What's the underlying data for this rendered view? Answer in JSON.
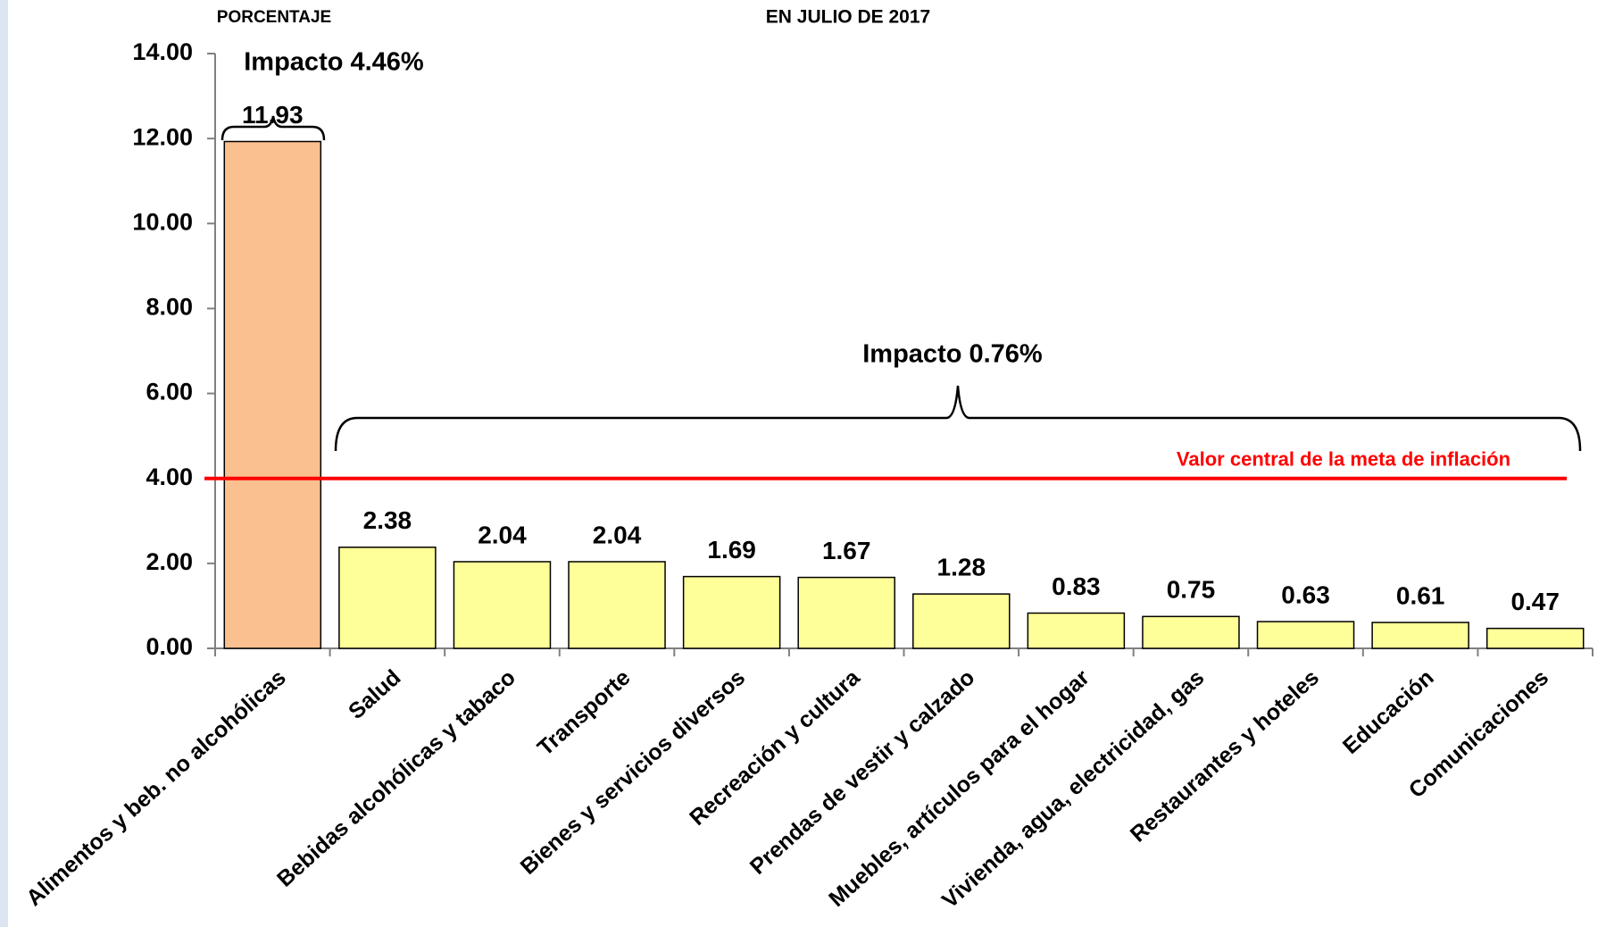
{
  "chart_data": {
    "type": "bar",
    "title": "EN JULIO DE 2017",
    "y_axis_label": "PORCENTAJE",
    "categories": [
      "Alimentos y beb. no alcohólicas",
      "Salud",
      "Bebidas alcohólicas y tabaco",
      "Transporte",
      "Bienes y servicios diversos",
      "Recreación y cultura",
      "Prendas de vestir y calzado",
      "Muebles, artículos para el hogar",
      "Vivienda, agua, electricidad, gas",
      "Restaurantes y hoteles",
      "Educación",
      "Comunicaciones"
    ],
    "values": [
      11.93,
      2.38,
      2.04,
      2.04,
      1.69,
      1.67,
      1.28,
      0.83,
      0.75,
      0.63,
      0.61,
      0.47
    ],
    "colors": [
      "#fac090",
      "#ffff99",
      "#ffff99",
      "#ffff99",
      "#ffff99",
      "#ffff99",
      "#ffff99",
      "#ffff99",
      "#ffff99",
      "#ffff99",
      "#ffff99",
      "#ffff99"
    ],
    "ylim": [
      0,
      14
    ],
    "yticks": [
      {
        "value": 0,
        "label": "0.00"
      },
      {
        "value": 2,
        "label": "2.00"
      },
      {
        "value": 4,
        "label": "4.00"
      },
      {
        "value": 6,
        "label": "6.00"
      },
      {
        "value": 8,
        "label": "8.00"
      },
      {
        "value": 10,
        "label": "10.00"
      },
      {
        "value": 12,
        "label": "12.00"
      },
      {
        "value": 14,
        "label": "14.00"
      }
    ],
    "reference_line": {
      "value": 4,
      "label": "Valor central de la meta de inflación",
      "color": "#ff0000"
    },
    "annotations": [
      "Impacto 4.46%",
      "Impacto 0.76%"
    ]
  }
}
